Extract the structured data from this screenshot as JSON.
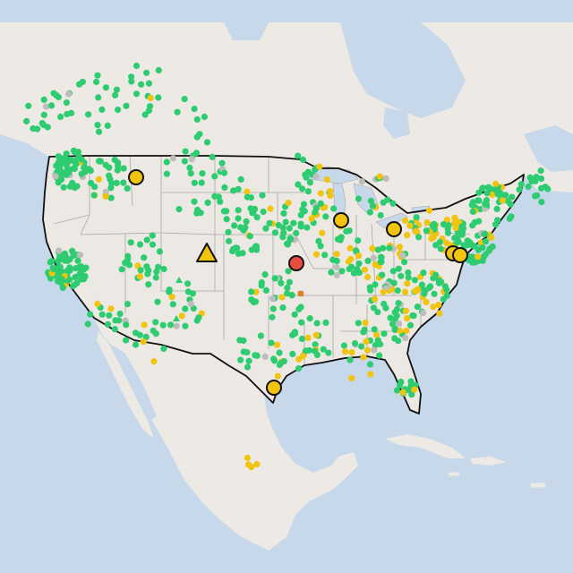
{
  "map": {
    "colors": {
      "water": "#c6d8ea",
      "land": "#ede9e4",
      "us_fill": "#ece8e3",
      "state_border": "#a9a9a9",
      "us_border": "#111111",
      "station_ok": "#2ecc71",
      "station_warn": "#f1c40f",
      "station_inactive": "#bdbdbd",
      "station_alert": "#e74c3c",
      "station_orange": "#e67e22"
    },
    "layers": [
      "water",
      "land",
      "state-borders",
      "us-border",
      "station-markers",
      "highlight-markers"
    ],
    "marker_types": [
      "small-dot",
      "circle-highlight",
      "triangle-highlight"
    ]
  }
}
